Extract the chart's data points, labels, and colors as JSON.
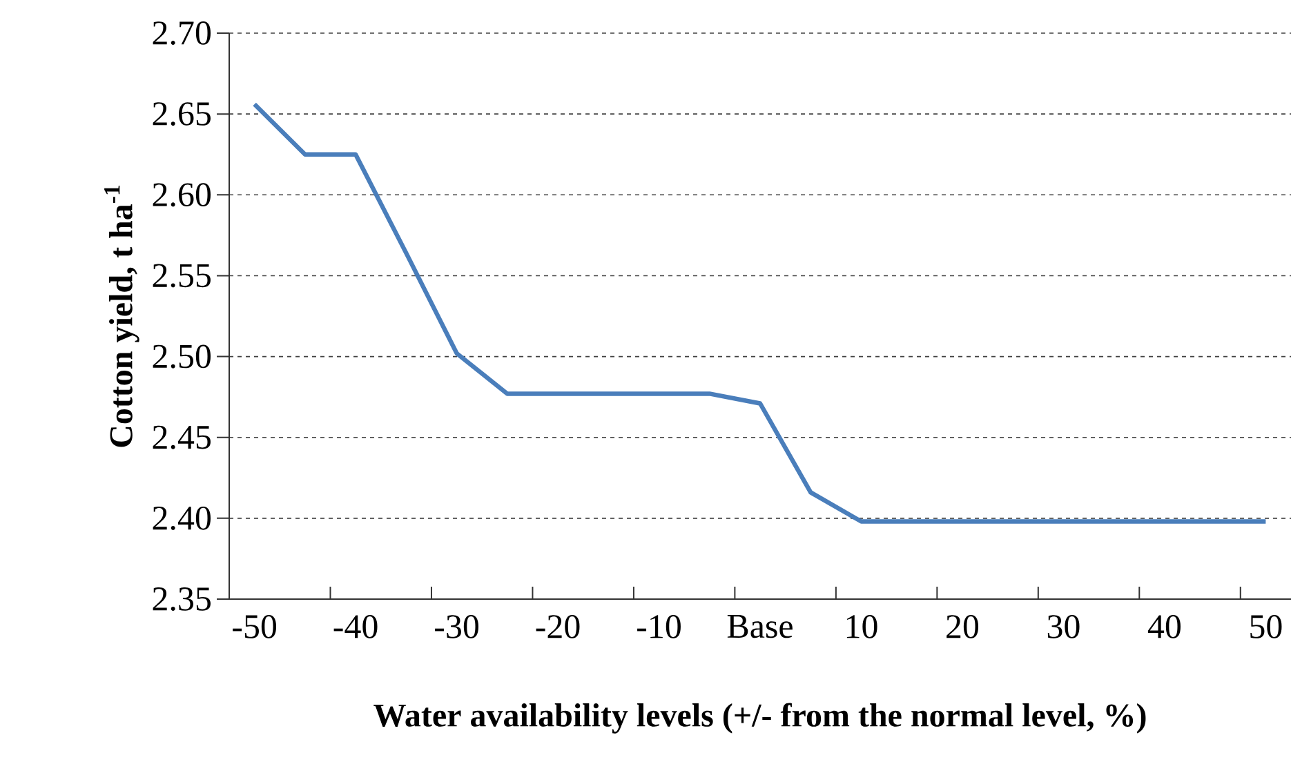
{
  "chart_data": {
    "type": "line",
    "xlabel": "Water availability levels (+/- from the normal level, %)",
    "ylabel": "Cotton yield, t ha$^{-1}$",
    "categories": [
      "-50",
      null,
      "-40",
      null,
      "-30",
      null,
      "-20",
      null,
      "-10",
      null,
      "Base",
      null,
      "10",
      null,
      "20",
      null,
      "30",
      null,
      "40",
      null,
      "50"
    ],
    "series": [
      {
        "color": "#4a7ebb",
        "values": [
          2.656,
          2.625,
          2.625,
          2.564,
          2.502,
          2.477,
          2.477,
          2.477,
          2.477,
          2.477,
          2.471,
          2.416,
          2.398,
          2.398,
          2.398,
          2.398,
          2.398,
          2.398,
          2.398,
          2.398,
          2.398
        ]
      }
    ],
    "ylim": [
      2.35,
      2.7
    ],
    "yticks": [
      {
        "value": 2.35,
        "label": "2.35"
      },
      {
        "value": 2.4,
        "label": "2.40"
      },
      {
        "value": 2.45,
        "label": "2.45"
      },
      {
        "value": 2.5,
        "label": "2.50"
      },
      {
        "value": 2.55,
        "label": "2.55"
      },
      {
        "value": 2.6,
        "label": "2.60"
      },
      {
        "value": 2.65,
        "label": "2.65"
      },
      {
        "value": 2.7,
        "label": "2.70"
      }
    ],
    "grid": "y",
    "marker": "none",
    "line_style": "solid"
  }
}
